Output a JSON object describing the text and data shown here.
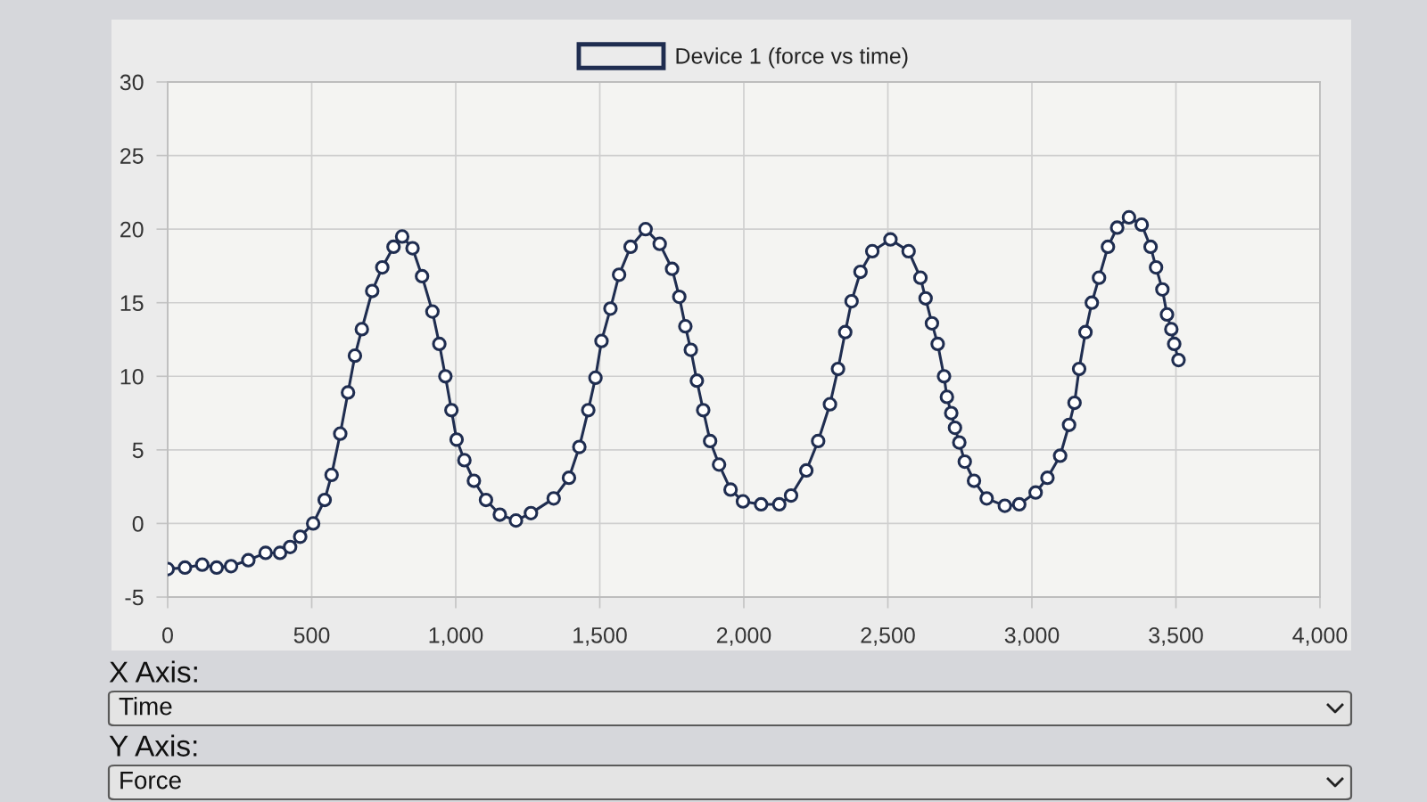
{
  "chart_data": {
    "type": "line",
    "x": [
      0,
      60,
      120,
      170,
      220,
      280,
      340,
      390,
      425,
      460,
      505,
      545,
      569,
      599,
      626,
      650,
      674,
      710,
      745,
      784,
      814,
      850,
      883,
      919,
      943,
      964,
      985,
      1003,
      1030,
      1063,
      1105,
      1153,
      1209,
      1261,
      1340,
      1393,
      1429,
      1460,
      1485,
      1506,
      1537,
      1567,
      1607,
      1659,
      1708,
      1751,
      1776,
      1797,
      1816,
      1837,
      1859,
      1883,
      1914,
      1954,
      1997,
      2060,
      2123,
      2164,
      2217,
      2258,
      2299,
      2327,
      2352,
      2374,
      2405,
      2446,
      2509,
      2572,
      2613,
      2631,
      2653,
      2673,
      2695,
      2705,
      2720,
      2733,
      2748,
      2767,
      2799,
      2843,
      2906,
      2956,
      3013,
      3054,
      3098,
      3129,
      3148,
      3164,
      3186,
      3208,
      3233,
      3264,
      3296,
      3337,
      3381,
      3412,
      3431,
      3453,
      3469,
      3484,
      3494,
      3509
    ],
    "series": [
      {
        "name": "Device 1 (force vs time)",
        "color": "#1f2d50",
        "values": [
          -3.1,
          -3.0,
          -2.8,
          -3.0,
          -2.9,
          -2.5,
          -2.0,
          -2.0,
          -1.6,
          -0.9,
          0.0,
          1.6,
          3.3,
          6.1,
          8.9,
          11.4,
          13.2,
          15.8,
          17.4,
          18.8,
          19.5,
          18.7,
          16.8,
          14.4,
          12.2,
          10.0,
          7.7,
          5.7,
          4.3,
          2.9,
          1.6,
          0.6,
          0.2,
          0.7,
          1.7,
          3.1,
          5.2,
          7.7,
          9.9,
          12.4,
          14.6,
          16.9,
          18.8,
          20.0,
          19.0,
          17.3,
          15.4,
          13.4,
          11.8,
          9.7,
          7.7,
          5.6,
          4.0,
          2.3,
          1.5,
          1.3,
          1.3,
          1.9,
          3.6,
          5.6,
          8.1,
          10.5,
          13.0,
          15.1,
          17.1,
          18.5,
          19.3,
          18.5,
          16.7,
          15.3,
          13.6,
          12.2,
          10.0,
          8.6,
          7.5,
          6.5,
          5.5,
          4.2,
          2.9,
          1.7,
          1.2,
          1.3,
          2.1,
          3.1,
          4.6,
          6.7,
          8.2,
          10.5,
          13.0,
          15.0,
          16.7,
          18.8,
          20.1,
          20.8,
          20.3,
          18.8,
          17.4,
          15.9,
          14.2,
          13.2,
          12.2,
          11.1
        ]
      }
    ],
    "xlim": [
      0,
      4000
    ],
    "xticks": [
      0,
      500,
      {
        "value": 1000,
        "label": "1,000"
      },
      {
        "value": 1500,
        "label": "1,500"
      },
      {
        "value": 2000,
        "label": "2,000"
      },
      {
        "value": 2500,
        "label": "2,500"
      },
      {
        "value": 3000,
        "label": "3,000"
      },
      {
        "value": 3500,
        "label": "3,500"
      },
      {
        "value": 4000,
        "label": "4,000"
      }
    ],
    "ylim": [
      -5,
      30
    ],
    "yticks": [
      -5,
      0,
      5,
      10,
      15,
      20,
      25,
      30
    ],
    "grid": true,
    "legend": "top",
    "marker": "circle",
    "line_style": "solid",
    "annotations": [
      "X Axis:",
      "Time",
      "Y Axis:",
      "Force"
    ]
  }
}
